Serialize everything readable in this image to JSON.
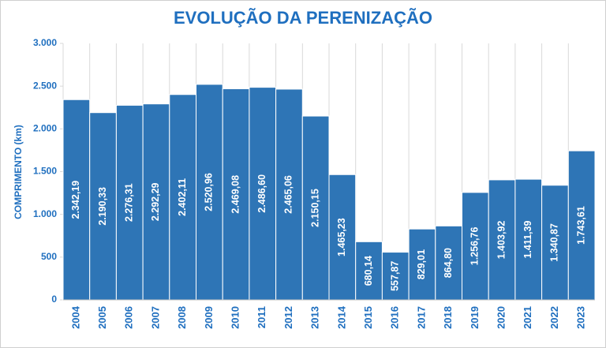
{
  "chart_data": {
    "type": "bar",
    "title": "EVOLUÇÃO DA PERENIZAÇÃO",
    "y_label": "COMPRIMENTO (km)",
    "categories": [
      "2004",
      "2005",
      "2006",
      "2007",
      "2008",
      "2009",
      "2010",
      "2011",
      "2012",
      "2013",
      "2014",
      "2015",
      "2016",
      "2017",
      "2018",
      "2019",
      "2020",
      "2021",
      "2022",
      "2023"
    ],
    "values": [
      2342.19,
      2190.33,
      2276.31,
      2292.29,
      2402.11,
      2520.96,
      2469.08,
      2486.6,
      2465.06,
      2150.15,
      1465.23,
      680.14,
      557.87,
      829.01,
      864.8,
      1256.76,
      1403.92,
      1411.39,
      1340.87,
      1743.61
    ],
    "value_labels": [
      "2.342,19",
      "2.190,33",
      "2.276,31",
      "2.292,29",
      "2.402,11",
      "2.520,96",
      "2.469,08",
      "2.486,60",
      "2.465,06",
      "2.150,15",
      "1.465,23",
      "680,14",
      "557,87",
      "829,01",
      "864,80",
      "1.256,76",
      "1.403,92",
      "1.411,39",
      "1.340,87",
      "1.743,61"
    ],
    "color": "#2e75b6",
    "ylim": [
      0,
      3000
    ],
    "yticks": [
      0,
      500,
      {
        "value": 1000,
        "label": "1.000"
      },
      {
        "value": 1500,
        "label": "1.500"
      },
      {
        "value": 2000,
        "label": "2.000"
      },
      {
        "value": 2500,
        "label": "2.500"
      },
      {
        "value": 3000,
        "label": "3.000"
      }
    ],
    "grid": true
  }
}
